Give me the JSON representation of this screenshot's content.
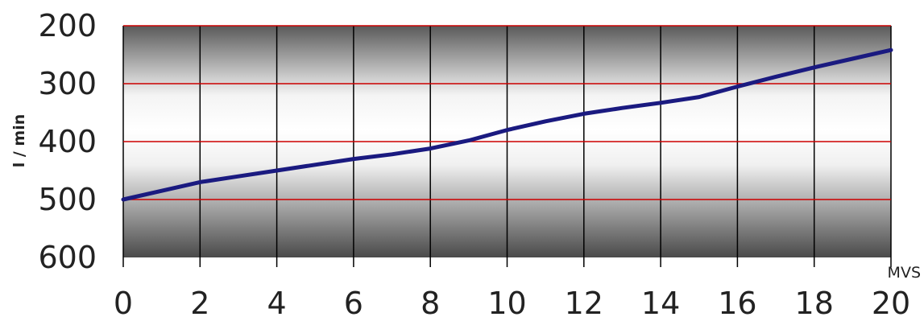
{
  "chart_data": {
    "type": "line",
    "title": "",
    "ylabel": "l / min",
    "xlabel": "MVS",
    "x_ticks": [
      "0",
      "2",
      "4",
      "6",
      "8",
      "10",
      "12",
      "14",
      "16",
      "18",
      "20"
    ],
    "y_ticks": [
      "200",
      "300",
      "400",
      "500",
      "600"
    ],
    "xlim": [
      0,
      20
    ],
    "ylim": [
      600,
      200
    ],
    "y_inverted": true,
    "grid": true,
    "colors": {
      "line": "#1a1a80",
      "hgrid": "#cc0000",
      "vgrid": "#000000"
    },
    "series": [
      {
        "x": [
          0,
          1,
          2,
          3,
          4,
          5,
          6,
          7,
          8,
          9,
          10,
          11,
          12,
          13,
          14,
          15,
          16,
          17,
          18,
          19,
          20
        ],
        "y": [
          500,
          485,
          470,
          460,
          450,
          440,
          430,
          422,
          412,
          398,
          380,
          365,
          352,
          342,
          333,
          323,
          305,
          288,
          272,
          257,
          242
        ]
      }
    ]
  }
}
